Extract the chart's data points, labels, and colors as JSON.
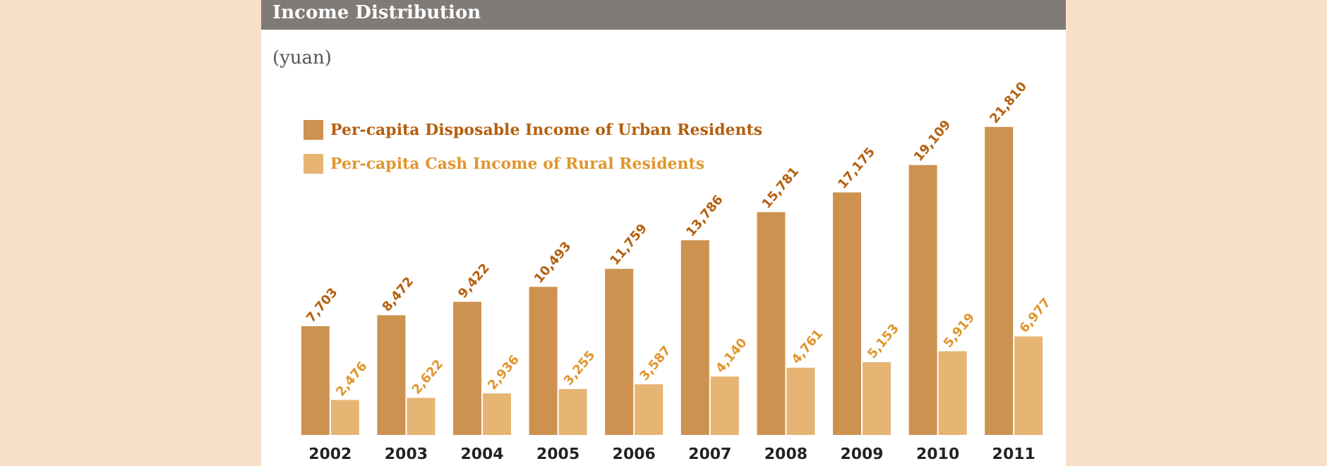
{
  "chart_data": {
    "type": "bar",
    "title": "Income Distribution",
    "ylabel": "(yuan)",
    "categories": [
      "2002",
      "2003",
      "2004",
      "2005",
      "2006",
      "2007",
      "2008",
      "2009",
      "2010",
      "2011"
    ],
    "series": [
      {
        "name": "Per-capita Disposable Income of Urban Residents",
        "color": "#cd9250",
        "values": [
          7703,
          8472,
          9422,
          10493,
          11759,
          13786,
          15781,
          17175,
          19109,
          21810
        ],
        "value_labels": [
          "7,703",
          "8,472",
          "9,422",
          "10,493",
          "11,759",
          "13,786",
          "15,781",
          "17,175",
          "19,109",
          "21,810"
        ]
      },
      {
        "name": "Per-capita Cash Income of Rural Residents",
        "color": "#e6b473",
        "values": [
          2476,
          2622,
          2936,
          3255,
          3587,
          4140,
          4761,
          5153,
          5919,
          6977
        ],
        "value_labels": [
          "2,476",
          "2,622",
          "2,936",
          "3,255",
          "3,587",
          "4,140",
          "4,761",
          "5,153",
          "5,919",
          "6,977"
        ]
      }
    ],
    "legend": "top left"
  }
}
